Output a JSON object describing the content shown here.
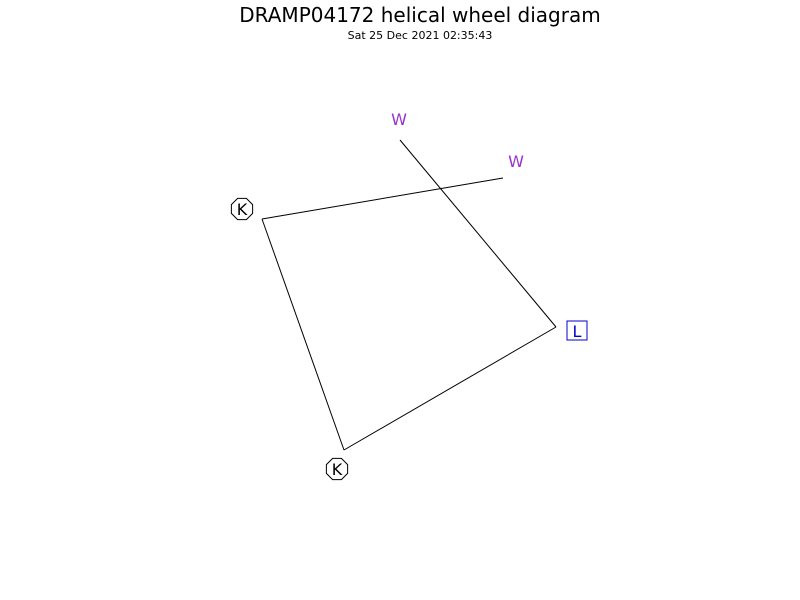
{
  "title": "DRAMP04172 helical wheel diagram",
  "timestamp": "Sat 25 Dec 2021 02:35:43",
  "colors": {
    "line": "#000000",
    "aromatic": "#9933cc",
    "charged": "#000000",
    "hydrophobic": "#0000cc"
  },
  "residues": [
    {
      "letter": "W",
      "class": "aromatic",
      "marker": "none"
    },
    {
      "letter": "W",
      "class": "aromatic",
      "marker": "none"
    },
    {
      "letter": "K",
      "class": "charged",
      "marker": "octagon"
    },
    {
      "letter": "K",
      "class": "charged",
      "marker": "octagon"
    },
    {
      "letter": "L",
      "class": "hydrophobic",
      "marker": "square"
    }
  ]
}
